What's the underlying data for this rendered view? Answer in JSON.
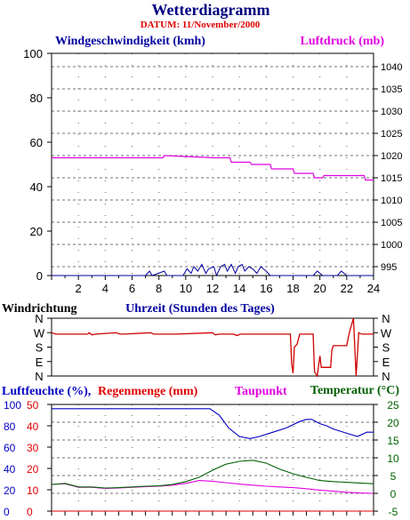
{
  "title": "Wetterdiagramm",
  "date_label": "DATUM: 11/November/2000",
  "colors": {
    "title": "#000080",
    "date": "#e00000",
    "wind": "#0000a0",
    "pressure": "#e000e0",
    "rain": "#e00000",
    "dewpoint": "#e000e0",
    "temperature": "#006000",
    "winddir": "#d00000",
    "humidity": "#0000c0"
  },
  "panel1": {
    "left_label": "Windgeschwindigkeit (kmh)",
    "right_label": "Luftdruck (mb)",
    "left_ticks": [
      "100",
      "80",
      "60",
      "40",
      "20",
      "0"
    ],
    "right_ticks": [
      "1040",
      "1035",
      "1030",
      "1025",
      "1020",
      "1015",
      "1010",
      "1005",
      "1000",
      "995"
    ],
    "x_ticks": [
      "2",
      "4",
      "6",
      "8",
      "10",
      "12",
      "14",
      "16",
      "18",
      "20",
      "22",
      "24"
    ]
  },
  "panel2": {
    "left_label": "Windrichtung",
    "center_label": "Uhrzeit (Stunden des Tages)",
    "dir_ticks": [
      "N",
      "W",
      "S",
      "E",
      "N"
    ]
  },
  "panel3": {
    "humidity_label": "Luftfeuchte (%),",
    "rain_label": "Regenmenge (mm)",
    "dewpoint_label": "Taupunkt",
    "temperature_label": "Temperatur (°C)",
    "humidity_ticks": [
      "100",
      "80",
      "60",
      "40",
      "20",
      "0"
    ],
    "rain_ticks": [
      "50",
      "40",
      "30",
      "20",
      "10",
      "0"
    ],
    "temp_ticks": [
      "25",
      "20",
      "15",
      "10",
      "5",
      "0",
      "-5"
    ]
  },
  "chart_data": [
    {
      "type": "line",
      "title": "Wetterdiagramm",
      "xlabel": "Uhrzeit (Stunden des Tages)",
      "xlim": [
        0,
        24
      ],
      "series": [
        {
          "name": "Windgeschwindigkeit (kmh)",
          "axis": "left",
          "ylim": [
            0,
            100
          ],
          "x": [
            0,
            7.0,
            7.3,
            7.5,
            8.4,
            8.6,
            9.8,
            10.1,
            10.4,
            10.6,
            10.9,
            11.2,
            11.5,
            11.7,
            12.1,
            12.3,
            12.6,
            12.9,
            13.1,
            13.4,
            13.7,
            13.9,
            14.2,
            14.4,
            14.7,
            15.0,
            15.3,
            15.6,
            16.0,
            16.3,
            19.5,
            19.8,
            20.2,
            21.3,
            21.6,
            22.0,
            24
          ],
          "y": [
            0,
            0,
            2,
            0,
            2,
            0,
            0,
            3,
            1,
            4,
            2,
            5,
            1,
            3,
            4,
            0,
            4,
            5,
            2,
            5,
            1,
            4,
            5,
            2,
            4,
            3,
            1,
            4,
            2,
            0,
            0,
            2,
            0,
            0,
            2,
            0,
            0
          ]
        },
        {
          "name": "Luftdruck (mb)",
          "axis": "right",
          "ylim": [
            993,
            1043
          ],
          "x": [
            0,
            8.3,
            8.4,
            12.1,
            13.3,
            13.4,
            14.8,
            14.9,
            16.3,
            16.4,
            18.0,
            18.1,
            19.5,
            19.6,
            20.2,
            20.3,
            23.3,
            23.4,
            24
          ],
          "y": [
            1019.5,
            1019.5,
            1020,
            1019.5,
            1019.5,
            1018.5,
            1018.5,
            1018,
            1018,
            1017,
            1017,
            1016,
            1016,
            1015,
            1015,
            1015.5,
            1015.5,
            1014.5,
            1014.5
          ]
        },
        {
          "name": "Windrichtung",
          "axis": "direction",
          "ticks": [
            "N",
            "W",
            "S",
            "E",
            "N"
          ],
          "x": [
            0,
            0.3,
            2.7,
            2.8,
            3.0,
            3.3,
            4.8,
            5.1,
            5.4,
            7.4,
            7.6,
            9.0,
            9.3,
            12.0,
            12.2,
            12.5,
            13.6,
            13.8,
            14.1,
            14.4,
            15.6,
            17.8,
            17.9,
            18.0,
            18.1,
            18.3,
            18.5,
            19.5,
            19.6,
            19.8,
            20.0,
            20.1,
            20.3,
            20.8,
            20.9,
            21.0,
            22.0,
            22.2,
            22.5,
            22.7,
            22.9,
            23.1,
            23.5,
            23.8,
            24
          ],
          "y": [
            1,
            1.1,
            1.1,
            1.0,
            1.15,
            1.1,
            1.0,
            1.1,
            1.1,
            1.0,
            1.1,
            1.1,
            1.1,
            1.0,
            1.15,
            1.1,
            1.1,
            1.2,
            1.1,
            1.1,
            1.1,
            1.1,
            3.2,
            3.8,
            2.0,
            1.8,
            1.1,
            1.1,
            3.7,
            4.0,
            2.6,
            3.4,
            3.4,
            3.4,
            2.2,
            1.9,
            1.9,
            1.0,
            0.0,
            4.0,
            1.0,
            1.1,
            1.1,
            1.1,
            1.1
          ]
        },
        {
          "name": "Luftfeuchte (%)",
          "axis": "humidity",
          "ylim": [
            0,
            100
          ],
          "x": [
            0,
            11.8,
            12.5,
            13.2,
            14.0,
            14.8,
            15.5,
            16.5,
            17.5,
            18.5,
            19.0,
            19.4,
            20.0,
            20.5,
            21.0,
            22.0,
            22.8,
            23.5,
            24
          ],
          "y": [
            96,
            96,
            90,
            78,
            70,
            68,
            70,
            74,
            78,
            84,
            86,
            86,
            82,
            80,
            77,
            73,
            70,
            74,
            74
          ]
        },
        {
          "name": "Regenmenge (mm)",
          "axis": "rain",
          "ylim": [
            0,
            50
          ],
          "x": [
            0,
            24
          ],
          "y": [
            0,
            0
          ]
        },
        {
          "name": "Taupunkt",
          "axis": "temperature",
          "ylim": [
            -5,
            25
          ],
          "x": [
            0,
            1,
            2,
            3,
            4,
            5,
            6,
            7,
            8,
            9,
            10,
            11,
            12,
            13,
            14,
            15,
            16,
            17,
            18,
            19,
            20,
            21,
            22,
            23,
            24
          ],
          "y": [
            2.5,
            2.7,
            1.7,
            1.7,
            1.4,
            1.5,
            1.7,
            1.9,
            2.0,
            2.3,
            2.8,
            3.6,
            3.4,
            3.0,
            2.6,
            2.3,
            2.0,
            1.8,
            1.6,
            1.3,
            0.9,
            0.6,
            0.3,
            0.1,
            0.0
          ]
        },
        {
          "name": "Temperatur (°C)",
          "axis": "temperature",
          "ylim": [
            -5,
            25
          ],
          "x": [
            0,
            1,
            2,
            3,
            4,
            5,
            6,
            7,
            8,
            9,
            10,
            11,
            12,
            13,
            14,
            15,
            16,
            17,
            18,
            19,
            20,
            21,
            22,
            23,
            24
          ],
          "y": [
            2.5,
            2.8,
            1.8,
            1.8,
            1.5,
            1.6,
            1.8,
            2.0,
            2.1,
            2.5,
            3.3,
            4.5,
            6.5,
            8.2,
            9.0,
            9.3,
            8.5,
            6.8,
            5.5,
            4.5,
            3.6,
            3.3,
            3.1,
            2.9,
            2.7
          ]
        }
      ]
    }
  ]
}
